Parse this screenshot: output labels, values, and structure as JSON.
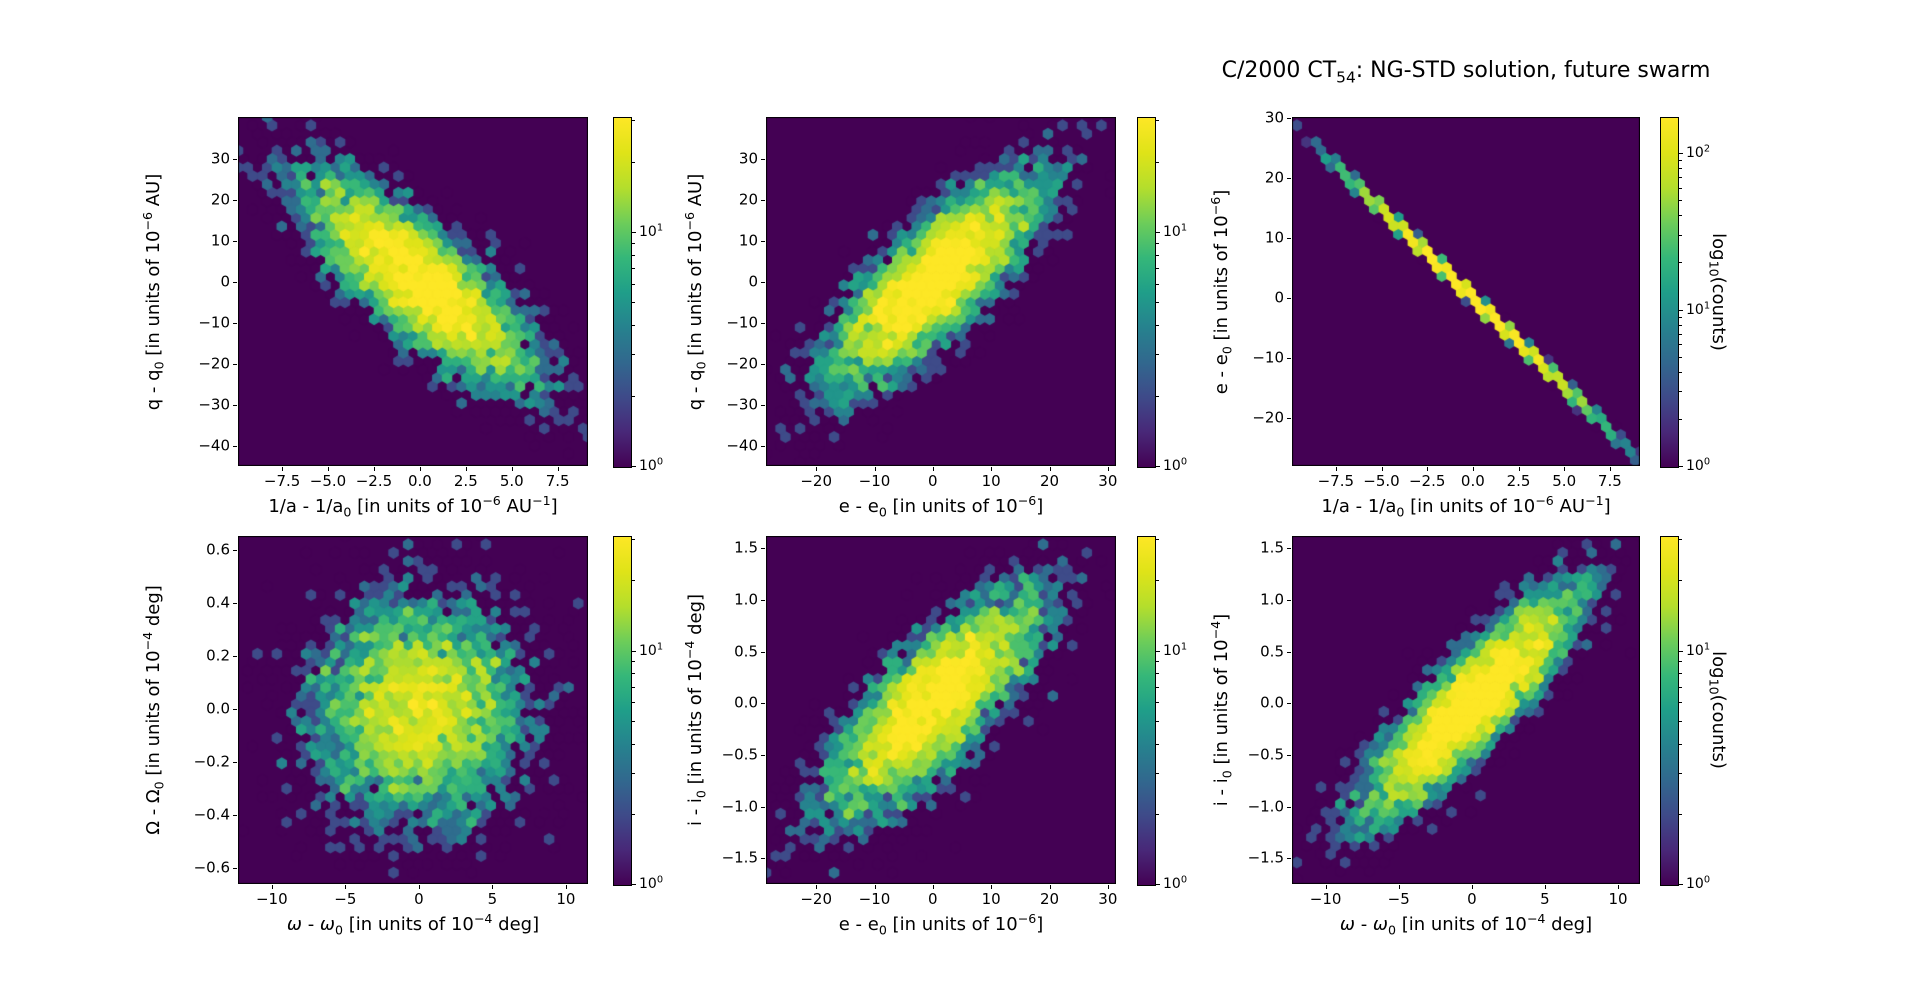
{
  "title": {
    "segments": [
      {
        "t": "C/2000 CT"
      },
      {
        "sub": "54"
      },
      {
        "t": ": NG-STD solution, future swarm"
      }
    ]
  },
  "colorbar_label_segments": [
    {
      "t": "log"
    },
    {
      "sub": "10"
    },
    {
      "t": "(counts)"
    }
  ],
  "chart_data": [
    {
      "id": "top-left",
      "type": "hexbin",
      "colormap": "viridis",
      "bg_color": "#440154",
      "xlabel_segments": [
        {
          "t": "1/a - 1/a"
        },
        {
          "sub": "0"
        },
        {
          "t": " [in units of 10"
        },
        {
          "sup": "−6"
        },
        {
          "t": " AU"
        },
        {
          "sup": "−1"
        },
        {
          "t": "]"
        }
      ],
      "ylabel_segments": [
        {
          "t": "q - q"
        },
        {
          "sub": "0"
        },
        {
          "t": " [in units of 10"
        },
        {
          "sup": "−6"
        },
        {
          "t": " AU]"
        }
      ],
      "xlim": [
        -9.9,
        9.15
      ],
      "ylim": [
        -45,
        40.2
      ],
      "xticks": {
        "values": [
          -7.5,
          -5.0,
          -2.5,
          0.0,
          2.5,
          5.0,
          7.5
        ],
        "labels": [
          "−7.5",
          "−5.0",
          "−2.5",
          "0.0",
          "2.5",
          "5.0",
          "7.5"
        ]
      },
      "yticks": {
        "values": [
          30,
          20,
          10,
          0,
          -10,
          -20,
          -30,
          -40
        ],
        "labels": [
          "30",
          "20",
          "10",
          "0",
          "−10",
          "−20",
          "−30",
          "−40"
        ]
      },
      "colorbar": {
        "vmax": 31,
        "show_label": false,
        "ticks": [
          {
            "value": 10,
            "base": "10",
            "exp": "1"
          },
          {
            "value": 1,
            "base": "10",
            "exp": "0"
          }
        ]
      },
      "distribution": {
        "kind": "gaussian2d",
        "n": 5500,
        "mean": [
          0,
          0
        ],
        "sigma": [
          3.2,
          13.2
        ],
        "corr": -0.8
      }
    },
    {
      "id": "top-middle",
      "type": "hexbin",
      "colormap": "viridis",
      "bg_color": "#440154",
      "xlabel_segments": [
        {
          "t": "e - e"
        },
        {
          "sub": "0"
        },
        {
          "t": " [in units of 10"
        },
        {
          "sup": "−6"
        },
        {
          "t": "]"
        }
      ],
      "ylabel_segments": [
        {
          "t": "q - q"
        },
        {
          "sub": "0"
        },
        {
          "t": " [in units of 10"
        },
        {
          "sup": "−6"
        },
        {
          "t": " AU]"
        }
      ],
      "xlim": [
        -28.6,
        31.4
      ],
      "ylim": [
        -45,
        40.2
      ],
      "xticks": {
        "values": [
          -20,
          -10,
          0,
          10,
          20,
          30
        ],
        "labels": [
          "−20",
          "−10",
          "0",
          "10",
          "20",
          "30"
        ]
      },
      "yticks": {
        "values": [
          30,
          20,
          10,
          0,
          -10,
          -20,
          -30,
          -40
        ],
        "labels": [
          "30",
          "20",
          "10",
          "0",
          "−10",
          "−20",
          "−30",
          "−40"
        ]
      },
      "colorbar": {
        "vmax": 31,
        "show_label": false,
        "ticks": [
          {
            "value": 10,
            "base": "10",
            "exp": "1"
          },
          {
            "value": 1,
            "base": "10",
            "exp": "0"
          }
        ]
      },
      "distribution": {
        "kind": "gaussian2d",
        "n": 5500,
        "mean": [
          0,
          0
        ],
        "sigma": [
          9.3,
          13.2
        ],
        "corr": 0.8
      }
    },
    {
      "id": "top-right",
      "type": "hexbin",
      "colormap": "viridis",
      "bg_color": "#440154",
      "xlabel_segments": [
        {
          "t": "1/a - 1/a"
        },
        {
          "sub": "0"
        },
        {
          "t": " [in units of 10"
        },
        {
          "sup": "−6"
        },
        {
          "t": " AU"
        },
        {
          "sup": "−1"
        },
        {
          "t": "]"
        }
      ],
      "ylabel_segments": [
        {
          "t": "e - e"
        },
        {
          "sub": "0"
        },
        {
          "t": " [in units of 10"
        },
        {
          "sup": "−6"
        },
        {
          "t": "]"
        }
      ],
      "xlim": [
        -9.9,
        9.15
      ],
      "ylim": [
        -28,
        30.2
      ],
      "xticks": {
        "values": [
          -7.5,
          -5.0,
          -2.5,
          0.0,
          2.5,
          5.0,
          7.5
        ],
        "labels": [
          "−7.5",
          "−5.0",
          "−2.5",
          "0.0",
          "2.5",
          "5.0",
          "7.5"
        ]
      },
      "yticks": {
        "values": [
          30,
          20,
          10,
          0,
          -10,
          -20
        ],
        "labels": [
          "30",
          "20",
          "10",
          "0",
          "−10",
          "−20"
        ]
      },
      "colorbar": {
        "vmax": 170,
        "show_label": true,
        "ticks": [
          {
            "value": 100,
            "base": "10",
            "exp": "2"
          },
          {
            "value": 10,
            "base": "10",
            "exp": "1"
          },
          {
            "value": 1,
            "base": "10",
            "exp": "0"
          }
        ]
      },
      "distribution": {
        "kind": "line",
        "n": 5500,
        "sigma_x": 3.2,
        "slope": -2.95,
        "noise_sigma": 0.28
      }
    },
    {
      "id": "bottom-left",
      "type": "hexbin",
      "colormap": "viridis",
      "bg_color": "#440154",
      "xlabel_segments": [
        {
          "i": "ω"
        },
        {
          "t": " - "
        },
        {
          "i": "ω"
        },
        {
          "sub": "0"
        },
        {
          "t": " [in units of 10"
        },
        {
          "sup": "−4"
        },
        {
          "t": " deg]"
        }
      ],
      "ylabel_segments": [
        {
          "t": "Ω - Ω"
        },
        {
          "sub": "0"
        },
        {
          "t": " [in units of 10"
        },
        {
          "sup": "−4"
        },
        {
          "t": " deg]"
        }
      ],
      "xlim": [
        -12.3,
        11.5
      ],
      "ylim": [
        -0.66,
        0.653
      ],
      "xticks": {
        "values": [
          -10,
          -5,
          0,
          5,
          10
        ],
        "labels": [
          "−10",
          "−5",
          "0",
          "5",
          "10"
        ]
      },
      "yticks": {
        "values": [
          0.6,
          0.4,
          0.2,
          0.0,
          -0.2,
          -0.4,
          -0.6
        ],
        "labels": [
          "0.6",
          "0.4",
          "0.2",
          "0.0",
          "−0.2",
          "−0.4",
          "−0.6"
        ]
      },
      "colorbar": {
        "vmax": 31,
        "show_label": false,
        "ticks": [
          {
            "value": 10,
            "base": "10",
            "exp": "1"
          },
          {
            "value": 1,
            "base": "10",
            "exp": "0"
          }
        ]
      },
      "distribution": {
        "kind": "gaussian2d",
        "n": 5500,
        "mean": [
          0,
          0
        ],
        "sigma": [
          3.7,
          0.215
        ],
        "corr": 0.02
      }
    },
    {
      "id": "bottom-middle",
      "type": "hexbin",
      "colormap": "viridis",
      "bg_color": "#440154",
      "xlabel_segments": [
        {
          "t": "e - e"
        },
        {
          "sub": "0"
        },
        {
          "t": " [in units of 10"
        },
        {
          "sup": "−6"
        },
        {
          "t": "]"
        }
      ],
      "ylabel_segments": [
        {
          "t": "i - i"
        },
        {
          "sub": "0"
        },
        {
          "t": " [in units of 10"
        },
        {
          "sup": "−4"
        },
        {
          "t": " deg]"
        }
      ],
      "xlim": [
        -28.6,
        31.4
      ],
      "ylim": [
        -1.75,
        1.62
      ],
      "xticks": {
        "values": [
          -20,
          -10,
          0,
          10,
          20,
          30
        ],
        "labels": [
          "−20",
          "−10",
          "0",
          "10",
          "20",
          "30"
        ]
      },
      "yticks": {
        "values": [
          1.5,
          1.0,
          0.5,
          0.0,
          -0.5,
          -1.0,
          -1.5
        ],
        "labels": [
          "1.5",
          "1.0",
          "0.5",
          "0.0",
          "−0.5",
          "−1.0",
          "−1.5"
        ]
      },
      "colorbar": {
        "vmax": 31,
        "show_label": false,
        "ticks": [
          {
            "value": 10,
            "base": "10",
            "exp": "1"
          },
          {
            "value": 1,
            "base": "10",
            "exp": "0"
          }
        ]
      },
      "distribution": {
        "kind": "gaussian2d",
        "n": 5500,
        "mean": [
          0,
          0
        ],
        "sigma": [
          9.3,
          0.55
        ],
        "corr": 0.77
      }
    },
    {
      "id": "bottom-right",
      "type": "hexbin",
      "colormap": "viridis",
      "bg_color": "#440154",
      "xlabel_segments": [
        {
          "i": "ω"
        },
        {
          "t": " - "
        },
        {
          "i": "ω"
        },
        {
          "sub": "0"
        },
        {
          "t": " [in units of 10"
        },
        {
          "sup": "−4"
        },
        {
          "t": " deg]"
        }
      ],
      "ylabel_segments": [
        {
          "t": "i - i"
        },
        {
          "sub": "0"
        },
        {
          "t": " [in units of 10"
        },
        {
          "sup": "−4"
        },
        {
          "t": "]"
        }
      ],
      "xlim": [
        -12.3,
        11.5
      ],
      "ylim": [
        -1.75,
        1.62
      ],
      "xticks": {
        "values": [
          -10,
          -5,
          0,
          5,
          10
        ],
        "labels": [
          "−10",
          "−5",
          "0",
          "5",
          "10"
        ]
      },
      "yticks": {
        "values": [
          1.5,
          1.0,
          0.5,
          0.0,
          -0.5,
          -1.0,
          -1.5
        ],
        "labels": [
          "1.5",
          "1.0",
          "0.5",
          "0.0",
          "−0.5",
          "−1.0",
          "−1.5"
        ]
      },
      "colorbar": {
        "vmax": 31,
        "show_label": true,
        "ticks": [
          {
            "value": 10,
            "base": "10",
            "exp": "1"
          },
          {
            "value": 1,
            "base": "10",
            "exp": "0"
          }
        ]
      },
      "distribution": {
        "kind": "gaussian2d",
        "n": 5500,
        "mean": [
          0,
          0
        ],
        "sigma": [
          3.7,
          0.55
        ],
        "corr": 0.87
      }
    }
  ]
}
